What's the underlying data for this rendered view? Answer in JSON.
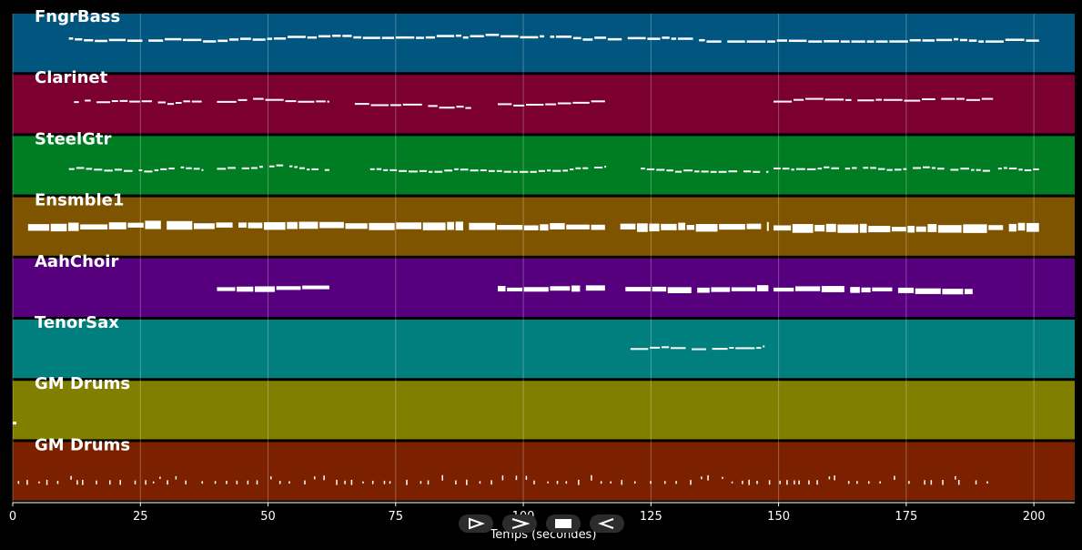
{
  "chart_data": {
    "type": "piano-roll",
    "xlabel": "Temps (secondes)",
    "xlim": [
      0,
      208
    ],
    "xticks": [
      0,
      25,
      50,
      75,
      100,
      125,
      150,
      175,
      200
    ],
    "grid": true,
    "tracks": [
      {
        "name": "FngrBass",
        "color": "#00567f",
        "segments": [
          [
            11,
            201
          ]
        ],
        "gaps": [],
        "style": "melodic",
        "size": "small",
        "range": [
          4,
          1
        ]
      },
      {
        "name": "Clarinet",
        "color": "#7b0031",
        "segments": [
          [
            12,
            37
          ],
          [
            40,
            62
          ],
          [
            67,
            90
          ],
          [
            95,
            116
          ],
          [
            149,
            192
          ]
        ],
        "style": "melodic",
        "size": "tiny",
        "range": [
          4,
          1
        ]
      },
      {
        "name": "SteelGtr",
        "color": "#007d23",
        "segments": [
          [
            11,
            37
          ],
          [
            40,
            62
          ],
          [
            70,
            116
          ],
          [
            123,
            148
          ],
          [
            149,
            192
          ],
          [
            193,
            201
          ]
        ],
        "style": "dense",
        "size": "tiny",
        "range": [
          4,
          1
        ]
      },
      {
        "name": "Ensmble1",
        "color": "#7e5400",
        "segments": [
          [
            3,
            116
          ],
          [
            119,
            148
          ],
          [
            149,
            201
          ]
        ],
        "style": "chord",
        "size": "large",
        "range": [
          4,
          1
        ]
      },
      {
        "name": "AahChoir",
        "color": "#56007e",
        "segments": [
          [
            40,
            62
          ],
          [
            95,
            116
          ],
          [
            120,
            148
          ],
          [
            149,
            188
          ]
        ],
        "style": "chord",
        "size": "medium",
        "range": [
          3,
          2
        ]
      },
      {
        "name": "TenorSax",
        "color": "#007f7e",
        "segments": [
          [
            121,
            147
          ]
        ],
        "style": "melodic",
        "size": "tiny",
        "range": [
          3,
          2
        ]
      },
      {
        "name": "GM Drums",
        "color": "#807f00",
        "segments": [
          [
            0,
            1
          ]
        ],
        "style": "single",
        "size": "small",
        "range": [
          1,
          0
        ]
      },
      {
        "name": "GM Drums",
        "color": "#7b2100",
        "segments": [
          [
            1,
            192
          ]
        ],
        "style": "drums",
        "size": "tiny",
        "range": [
          2,
          0
        ]
      }
    ]
  },
  "controls": {
    "buttons": [
      "play",
      "fast-forward",
      "stop",
      "rewind"
    ]
  }
}
